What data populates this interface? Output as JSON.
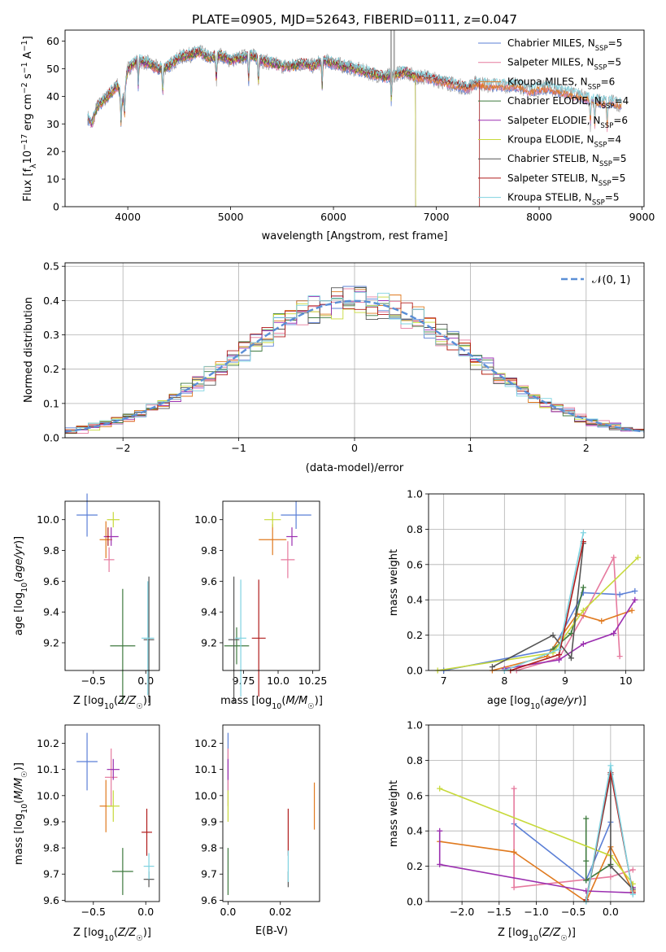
{
  "figure": {
    "title": "PLATE=0905, MJD=52643, FIBERID=0111, z=0.047"
  },
  "model_colors": [
    "#5b7fd6",
    "#e67a9e",
    "#e07a1f",
    "#3f7a3f",
    "#9b2fb0",
    "#c7d93a",
    "#555555",
    "#b01c1c",
    "#7fd3e0"
  ],
  "chart_data": [
    {
      "id": "spectrum",
      "type": "line",
      "title": "PLATE=0905, MJD=52643, FIBERID=0111, z=0.047",
      "xlabel": "wavelength [Angstrom, rest frame]",
      "ylabel": "Flux [f_λ10^-17 erg cm^-2 s^-1 A^-1]",
      "xlim": [
        3390,
        9020
      ],
      "ylim": [
        0,
        64
      ],
      "xticks": [
        4000,
        5000,
        6000,
        7000,
        8000,
        9000
      ],
      "yticks": [
        0,
        10,
        20,
        30,
        40,
        50,
        60
      ],
      "grid": false,
      "legend_position": "top-right",
      "legend": [
        "Chabrier MILES, N_SSP=5",
        "Salpeter MILES, N_SSP=5",
        "Kroupa MILES, N_SSP=6",
        "Chabrier ELODIE, N_SSP=4",
        "Salpeter ELODIE, N_SSP=6",
        "Kroupa ELODIE, N_SSP=4",
        "Chabrier STELIB, N_SSP=5",
        "Salpeter STELIB, N_SSP=5",
        "Kroupa STELIB, N_SSP=5"
      ],
      "data_wavelength": [
        3600,
        3650,
        3700,
        3800,
        3900,
        3950,
        4000,
        4100,
        4200,
        4300,
        4400,
        4500,
        4600,
        4700,
        4800,
        4900,
        5000,
        5100,
        5200,
        5300,
        5400,
        5500,
        5600,
        5700,
        5800,
        5900,
        6000,
        6100,
        6200,
        6300,
        6400,
        6500,
        6600,
        6700,
        6800,
        6900,
        7000,
        7100,
        7200,
        7300,
        7400,
        7500,
        7600,
        7700,
        7800,
        7900,
        8000,
        8100,
        8200,
        8300,
        8400,
        8500,
        8600,
        8700,
        8800
      ],
      "data_flux": [
        33,
        30,
        36,
        40,
        44,
        38,
        50,
        53,
        52,
        50,
        51,
        54,
        55,
        56,
        54,
        55,
        53,
        54,
        55,
        53,
        52,
        51,
        51,
        52,
        51,
        53,
        52,
        51,
        50,
        49,
        48,
        47,
        48,
        49,
        47,
        47,
        46,
        45,
        44,
        43,
        45,
        44,
        44,
        44,
        44,
        42,
        43,
        43,
        42,
        41,
        40,
        39,
        38,
        38,
        37
      ],
      "model_end_wavelength": [
        8800,
        8800,
        8800,
        6800,
        6800,
        6800,
        7420,
        7420,
        8800
      ]
    },
    {
      "id": "residuals",
      "type": "histogram",
      "xlabel": "(data-model)/error",
      "ylabel": "Normed distribution",
      "xlim": [
        -2.5,
        2.5
      ],
      "ylim": [
        0,
        0.51
      ],
      "xticks": [
        -2,
        -1,
        0,
        1,
        2
      ],
      "yticks": [
        0.0,
        0.1,
        0.2,
        0.3,
        0.4,
        0.5
      ],
      "grid": true,
      "legend_position": "top-right",
      "reference_curve": "N(0,1)",
      "reference_label": "𝒩(0, 1)",
      "bin_width": 0.1,
      "bin_start": -2.5
    },
    {
      "id": "age_vs_Z",
      "type": "errorbar",
      "xlabel": "Z [log10(Z/Z☉)]",
      "ylabel": "age [log10(age/yr)]",
      "xlim": [
        -0.77,
        0.13
      ],
      "ylim": [
        9.02,
        10.12
      ],
      "xticks": [
        -0.5,
        0.0
      ],
      "yticks": [
        9.2,
        9.4,
        9.6,
        9.8,
        10.0
      ],
      "points": [
        {
          "x": -0.56,
          "y": 10.03,
          "xerr": 0.1,
          "yerr": 0.14
        },
        {
          "x": -0.35,
          "y": 9.74,
          "xerr": 0.05,
          "yerr": 0.08
        },
        {
          "x": -0.38,
          "y": 9.87,
          "xerr": 0.06,
          "yerr": 0.12
        },
        {
          "x": -0.22,
          "y": 9.18,
          "xerr": 0.12,
          "yerr": 0.37
        },
        {
          "x": -0.33,
          "y": 9.89,
          "xerr": 0.07,
          "yerr": 0.06
        },
        {
          "x": -0.31,
          "y": 10.0,
          "xerr": 0.06,
          "yerr": 0.05
        },
        {
          "x": 0.03,
          "y": 9.22,
          "xerr": 0.05,
          "yerr": 0.41
        },
        {
          "x": -0.36,
          "y": 9.89,
          "xerr": 0.01,
          "yerr": 0.06
        },
        {
          "x": 0.02,
          "y": 9.23,
          "xerr": 0.06,
          "yerr": 0.37
        }
      ]
    },
    {
      "id": "age_vs_mass",
      "type": "errorbar",
      "xlabel": "mass [log10(M/M☉)]",
      "ylabel": "",
      "xlim": [
        9.6,
        10.3
      ],
      "ylim": [
        9.02,
        10.12
      ],
      "xticks": [
        9.75,
        10.0,
        10.25
      ],
      "yticks": [
        9.2,
        9.4,
        9.6,
        9.8,
        10.0
      ],
      "points": [
        {
          "x": 10.13,
          "y": 10.03,
          "xerr": 0.11,
          "yerr": 0.09
        },
        {
          "x": 10.07,
          "y": 9.74,
          "xerr": 0.05,
          "yerr": 0.12
        },
        {
          "x": 9.96,
          "y": 9.87,
          "xerr": 0.1,
          "yerr": 0.1
        },
        {
          "x": 9.7,
          "y": 9.18,
          "xerr": 0.09,
          "yerr": 0.12
        },
        {
          "x": 10.1,
          "y": 9.89,
          "xerr": 0.04,
          "yerr": 0.06
        },
        {
          "x": 9.96,
          "y": 10.0,
          "xerr": 0.06,
          "yerr": 0.05
        },
        {
          "x": 9.68,
          "y": 9.22,
          "xerr": 0.04,
          "yerr": 0.41
        },
        {
          "x": 9.86,
          "y": 9.23,
          "xerr": 0.05,
          "yerr": 0.38
        },
        {
          "x": 9.73,
          "y": 9.23,
          "xerr": 0.04,
          "yerr": 0.38
        }
      ]
    },
    {
      "id": "mass_weight_vs_age",
      "type": "line",
      "xlabel": "age [log10(age/yr)]",
      "ylabel": "mass weight",
      "xlim": [
        6.75,
        10.3
      ],
      "ylim": [
        0,
        1
      ],
      "xticks": [
        7,
        8,
        9,
        10
      ],
      "yticks": [
        0.0,
        0.2,
        0.4,
        0.6,
        0.8,
        1.0
      ],
      "grid": true,
      "series": [
        {
          "x": [
            7.0,
            8.8,
            9.3,
            9.9,
            10.15
          ],
          "y": [
            0.0,
            0.12,
            0.44,
            0.43,
            0.45
          ]
        },
        {
          "x": [
            8.2,
            8.9,
            9.3,
            9.8,
            9.9
          ],
          "y": [
            0.0,
            0.07,
            0.31,
            0.64,
            0.08
          ]
        },
        {
          "x": [
            7.8,
            8.7,
            9.2,
            9.6,
            10.1
          ],
          "y": [
            0.0,
            0.08,
            0.32,
            0.28,
            0.34
          ]
        },
        {
          "x": [
            8.8,
            9.1,
            9.3
          ],
          "y": [
            0.12,
            0.21,
            0.47
          ]
        },
        {
          "x": [
            8.0,
            8.9,
            9.3,
            9.8,
            10.15
          ],
          "y": [
            0.01,
            0.06,
            0.15,
            0.21,
            0.4
          ]
        },
        {
          "x": [
            6.9,
            8.8,
            9.3,
            10.2
          ],
          "y": [
            0.0,
            0.1,
            0.34,
            0.64
          ]
        },
        {
          "x": [
            7.8,
            8.8,
            9.1,
            9.3
          ],
          "y": [
            0.02,
            0.2,
            0.07,
            0.72
          ]
        },
        {
          "x": [
            8.1,
            8.9,
            9.3
          ],
          "y": [
            0.0,
            0.09,
            0.73
          ]
        },
        {
          "x": [
            8.0,
            8.9,
            9.3
          ],
          "y": [
            0.0,
            0.12,
            0.78
          ]
        }
      ]
    },
    {
      "id": "mass_vs_Z",
      "type": "errorbar",
      "xlabel": "Z [log10(Z/Z☉)]",
      "ylabel": "mass [log10(M/M☉)]",
      "xlim": [
        -0.77,
        0.13
      ],
      "ylim": [
        9.595,
        10.27
      ],
      "xticks": [
        -0.5,
        0.0
      ],
      "yticks": [
        9.6,
        9.7,
        9.8,
        9.9,
        10.0,
        10.1,
        10.2
      ],
      "points": [
        {
          "x": -0.56,
          "y": 10.13,
          "xerr": 0.1,
          "yerr": 0.11
        },
        {
          "x": -0.33,
          "y": 10.07,
          "xerr": 0.06,
          "yerr": 0.11
        },
        {
          "x": -0.38,
          "y": 9.96,
          "xerr": 0.06,
          "yerr": 0.1
        },
        {
          "x": -0.22,
          "y": 9.71,
          "xerr": 0.1,
          "yerr": 0.09
        },
        {
          "x": -0.31,
          "y": 10.1,
          "xerr": 0.06,
          "yerr": 0.04
        },
        {
          "x": -0.31,
          "y": 9.96,
          "xerr": 0.06,
          "yerr": 0.06
        },
        {
          "x": 0.03,
          "y": 9.68,
          "xerr": 0.05,
          "yerr": 0.03
        },
        {
          "x": 0.01,
          "y": 9.86,
          "xerr": 0.05,
          "yerr": 0.09
        },
        {
          "x": 0.03,
          "y": 9.73,
          "xerr": 0.05,
          "yerr": 0.05
        }
      ]
    },
    {
      "id": "mass_vs_ebv",
      "type": "errorbar",
      "xlabel": "E(B-V)",
      "ylabel": "",
      "xlim": [
        -0.002,
        0.035
      ],
      "ylim": [
        9.595,
        10.27
      ],
      "xticks": [
        0.0,
        0.02
      ],
      "yticks": [
        9.6,
        9.7,
        9.8,
        9.9,
        10.0,
        10.1,
        10.2
      ],
      "points": [
        {
          "x": 0.0,
          "y": 10.13,
          "xerr": 0,
          "yerr": 0.11
        },
        {
          "x": 0.0,
          "y": 10.07,
          "xerr": 0,
          "yerr": 0.11
        },
        {
          "x": 0.033,
          "y": 9.96,
          "xerr": 0,
          "yerr": 0.09
        },
        {
          "x": 0.0,
          "y": 9.71,
          "xerr": 0,
          "yerr": 0.09
        },
        {
          "x": 0.0,
          "y": 10.1,
          "xerr": 0,
          "yerr": 0.04
        },
        {
          "x": 0.0,
          "y": 9.96,
          "xerr": 0,
          "yerr": 0.06
        },
        {
          "x": 0.023,
          "y": 9.68,
          "xerr": 0,
          "yerr": 0.03
        },
        {
          "x": 0.023,
          "y": 9.86,
          "xerr": 0,
          "yerr": 0.09
        },
        {
          "x": 0.023,
          "y": 9.73,
          "xerr": 0,
          "yerr": 0.06
        }
      ]
    },
    {
      "id": "mass_weight_vs_Z",
      "type": "line",
      "xlabel": "Z [log10(Z/Z☉)]",
      "ylabel": "mass weight",
      "xlim": [
        -2.45,
        0.45
      ],
      "ylim": [
        0,
        1
      ],
      "xticks": [
        -2.0,
        -1.5,
        -1.0,
        -0.5,
        0.0
      ],
      "yticks": [
        0.0,
        0.2,
        0.4,
        0.6,
        0.8,
        1.0
      ],
      "grid": true,
      "series": [
        {
          "x": [
            -1.3,
            -0.33,
            0.0
          ],
          "y": [
            0.44,
            0.12,
            0.45
          ]
        },
        {
          "x": [
            -1.3,
            -1.3,
            0.0,
            0.3
          ],
          "y": [
            0.64,
            0.08,
            0.14,
            0.18
          ]
        },
        {
          "x": [
            -2.3,
            -1.3,
            -0.33,
            0.0,
            0.3
          ],
          "y": [
            0.34,
            0.28,
            0.0,
            0.31,
            0.06
          ]
        },
        {
          "x": [
            -0.33,
            -0.33,
            -0.33,
            0.0
          ],
          "y": [
            0.47,
            0.23,
            0.12,
            0.21
          ]
        },
        {
          "x": [
            -2.3,
            -2.3,
            -0.33,
            0.3,
            0.3
          ],
          "y": [
            0.4,
            0.21,
            0.06,
            0.05,
            0.08
          ]
        },
        {
          "x": [
            -2.3,
            0.0,
            0.3
          ],
          "y": [
            0.64,
            0.26,
            0.1
          ]
        },
        {
          "x": [
            -0.33,
            0.0,
            0.0,
            0.3
          ],
          "y": [
            0.0,
            0.72,
            0.2,
            0.07
          ]
        },
        {
          "x": [
            -0.33,
            0.0,
            0.3
          ],
          "y": [
            0.01,
            0.73,
            0.05
          ]
        },
        {
          "x": [
            -0.33,
            0.0,
            0.3
          ],
          "y": [
            0.0,
            0.77,
            0.04
          ]
        }
      ]
    }
  ]
}
